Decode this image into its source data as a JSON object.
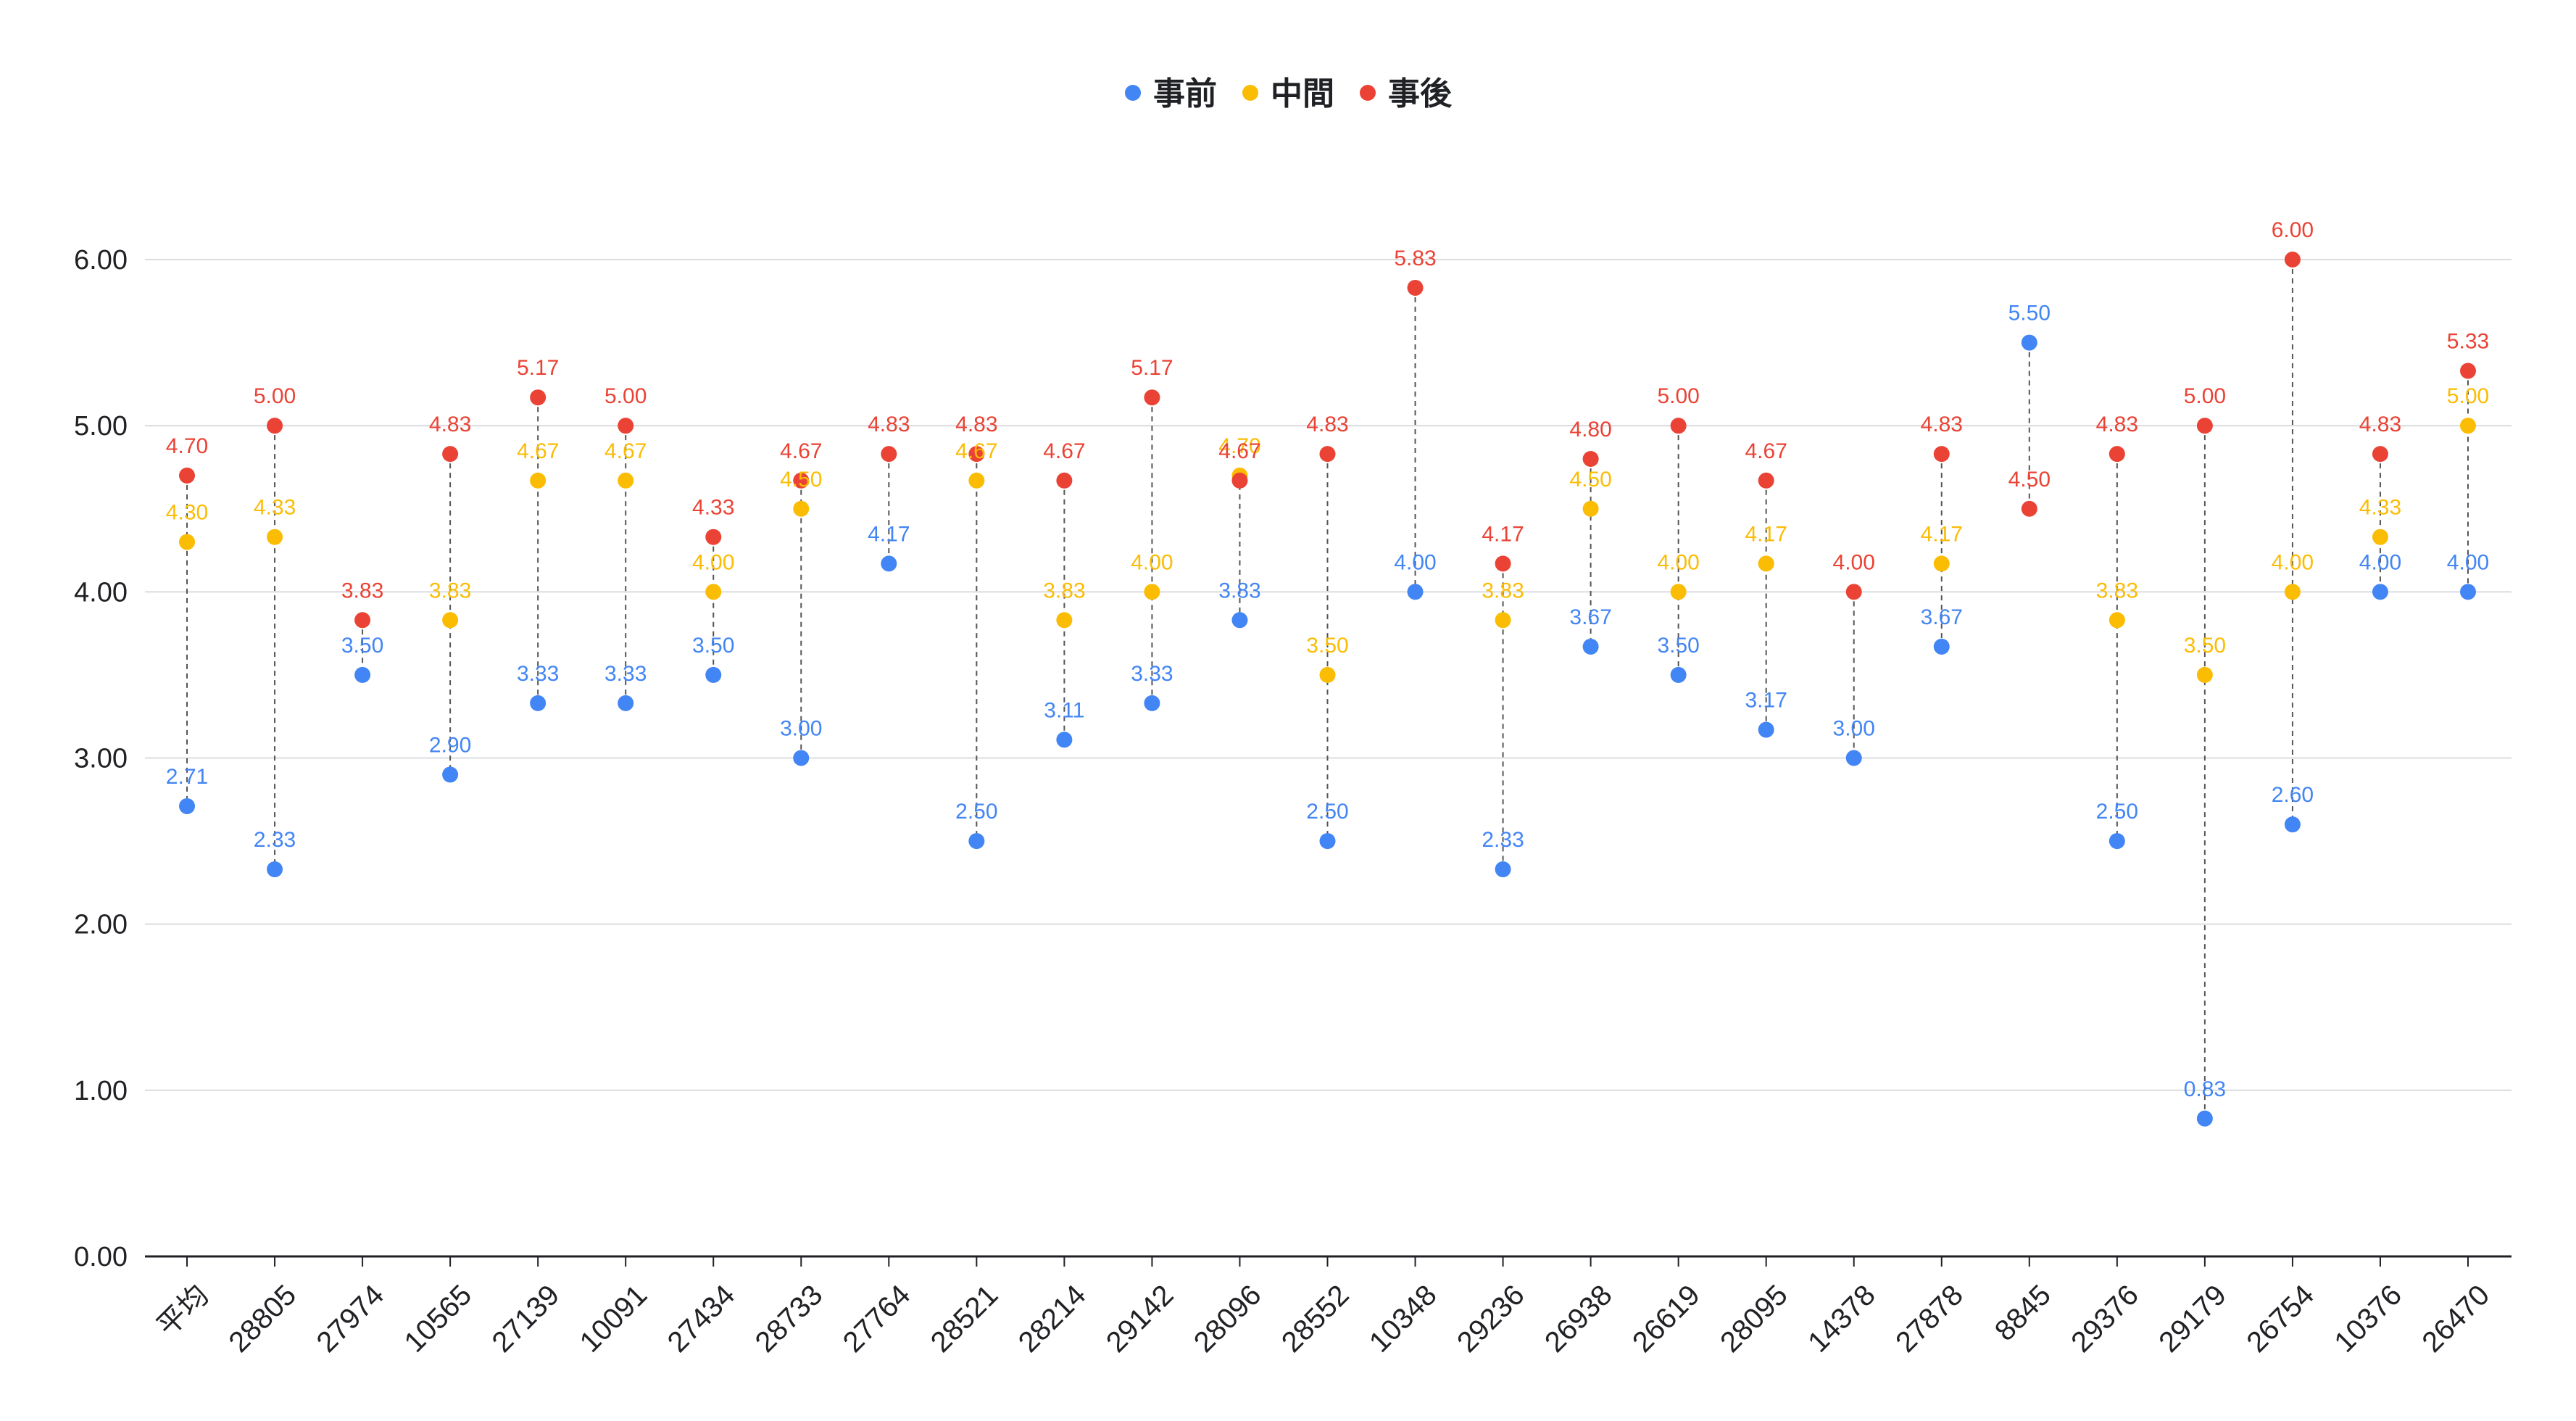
{
  "chart_data": {
    "type": "scatter",
    "title": "",
    "xlabel": "",
    "ylabel": "",
    "ylim": [
      0,
      6
    ],
    "yticks": [
      "0.00",
      "1.00",
      "2.00",
      "3.00",
      "4.00",
      "5.00",
      "6.00"
    ],
    "grid": true,
    "legend_position": "top-center",
    "categories": [
      "平均",
      "28805",
      "27974",
      "10565",
      "27139",
      "10091",
      "27434",
      "28733",
      "27764",
      "28521",
      "28214",
      "29142",
      "28096",
      "28552",
      "10348",
      "29236",
      "26938",
      "26619",
      "28095",
      "14378",
      "27878",
      "8845",
      "29376",
      "29179",
      "26754",
      "10376",
      "26470"
    ],
    "series": [
      {
        "name": "事前",
        "color": "#4285f4",
        "values": [
          2.71,
          2.33,
          3.5,
          2.9,
          3.33,
          3.33,
          3.5,
          3.0,
          4.17,
          2.5,
          3.11,
          3.33,
          3.83,
          2.5,
          4.0,
          2.33,
          3.67,
          3.5,
          3.17,
          3.0,
          3.67,
          5.5,
          2.5,
          0.83,
          2.6,
          4.0,
          4.0
        ],
        "labels": [
          "2.71",
          "2.33",
          "3.50",
          "2.90",
          "3.33",
          "3.33",
          "3.50",
          "3.00",
          "4.17",
          "2.50",
          "3.11",
          "3.33",
          "3.83",
          "2.50",
          "4.00",
          "2.33",
          "3.67",
          "3.50",
          "3.17",
          "3.00",
          "3.67",
          "5.50",
          "2.50",
          "0.83",
          "2.60",
          "4.00",
          "4.00"
        ]
      },
      {
        "name": "中間",
        "color": "#fbbc04",
        "values": [
          4.3,
          4.33,
          null,
          3.83,
          4.67,
          4.67,
          4.0,
          4.5,
          null,
          4.67,
          3.83,
          4.0,
          4.7,
          3.5,
          null,
          3.83,
          4.5,
          4.0,
          4.17,
          null,
          4.17,
          null,
          3.83,
          3.5,
          4.0,
          4.33,
          5.0
        ],
        "labels": [
          "4.30",
          "4.33",
          "",
          "3.83",
          "4.67",
          "4.67",
          "4.00",
          "4.50",
          "",
          "4.67",
          "3.83",
          "4.00",
          "4.70",
          "3.50",
          "",
          "3.83",
          "4.50",
          "4.00",
          "4.17",
          "",
          "4.17",
          "",
          "3.83",
          "3.50",
          "4.00",
          "4.33",
          "5.00"
        ]
      },
      {
        "name": "事後",
        "color": "#ea4335",
        "values": [
          4.7,
          5.0,
          3.83,
          4.83,
          5.17,
          5.0,
          4.33,
          4.67,
          4.83,
          4.83,
          4.67,
          5.17,
          4.67,
          4.83,
          5.83,
          4.17,
          4.8,
          5.0,
          4.67,
          4.0,
          4.83,
          4.5,
          4.83,
          5.0,
          6.0,
          4.83,
          5.33
        ],
        "labels": [
          "4.70",
          "5.00",
          "3.83",
          "4.83",
          "5.17",
          "5.00",
          "4.33",
          "4.67",
          "4.83",
          "4.83",
          "4.67",
          "5.17",
          "4.67",
          "4.83",
          "5.83",
          "4.17",
          "4.80",
          "5.00",
          "4.67",
          "4.00",
          "4.83",
          "4.50",
          "4.83",
          "5.00",
          "6.00",
          "4.83",
          "5.33"
        ]
      }
    ]
  },
  "colors": {
    "grid": "#dadce0",
    "axis": "#202124",
    "connector": "#555555"
  }
}
